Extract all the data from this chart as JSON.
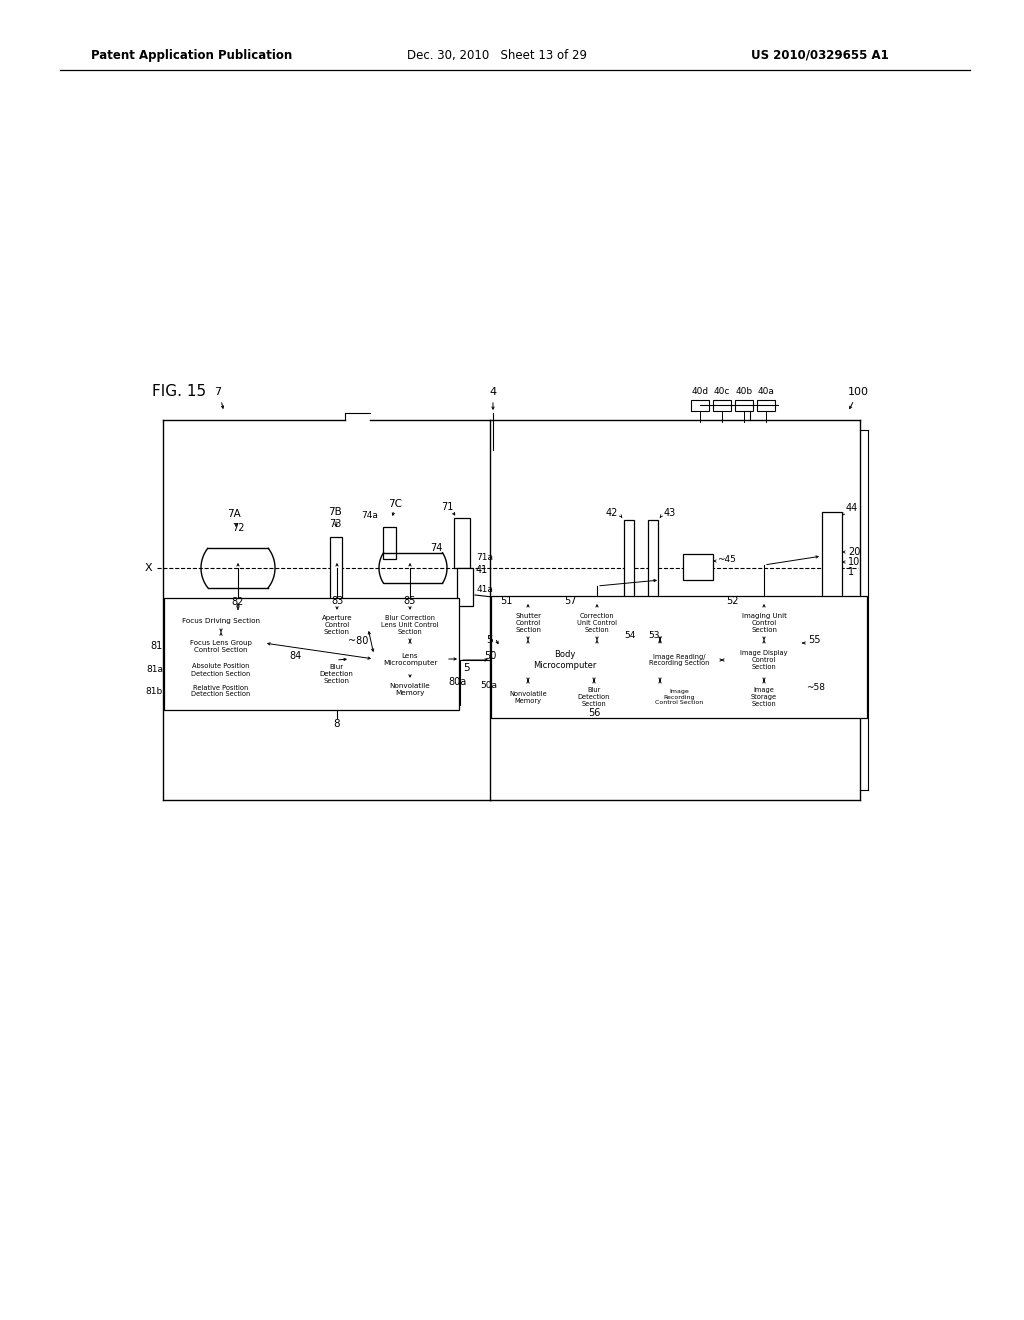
{
  "background": "#ffffff",
  "lc": "#000000",
  "header_left": "Patent Application Publication",
  "header_mid": "Dec. 30, 2010   Sheet 13 of 29",
  "header_right": "US 2010/0329655 A1"
}
